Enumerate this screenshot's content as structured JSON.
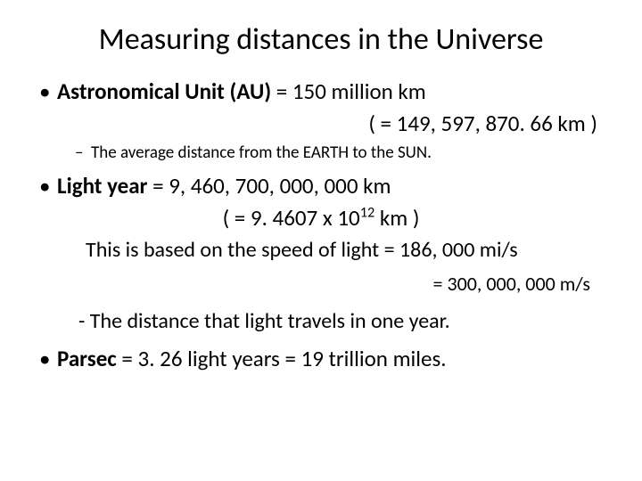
{
  "colors": {
    "background": "#ffffff",
    "text": "#000000"
  },
  "fonts": {
    "family": "Calibri, Arial, sans-serif",
    "title_size": 34,
    "body_size": 25,
    "sub_size": 19
  },
  "title": "Measuring distances in the Universe",
  "au": {
    "label": "Astronomical Unit (AU)",
    "eq": "   =   150 million km",
    "exact": "( = 149, 597, 870. 66 km )",
    "note": "The average distance from the EARTH to the SUN."
  },
  "ly": {
    "label": "Light year",
    "eq": "  = 9, 460, 700, 000, 000 km",
    "exact_pre": "( = 9. 4607 x 10",
    "exact_exp": "12",
    "exact_post": " km )",
    "basis": "This is based on the speed of light  =  186, 000 mi/s",
    "basis2": "=  300, 000, 000 m/s",
    "note": "- The distance that light travels in one year."
  },
  "pc": {
    "label": "Parsec",
    "eq": " = 3. 26 light years = 19 trillion miles."
  }
}
